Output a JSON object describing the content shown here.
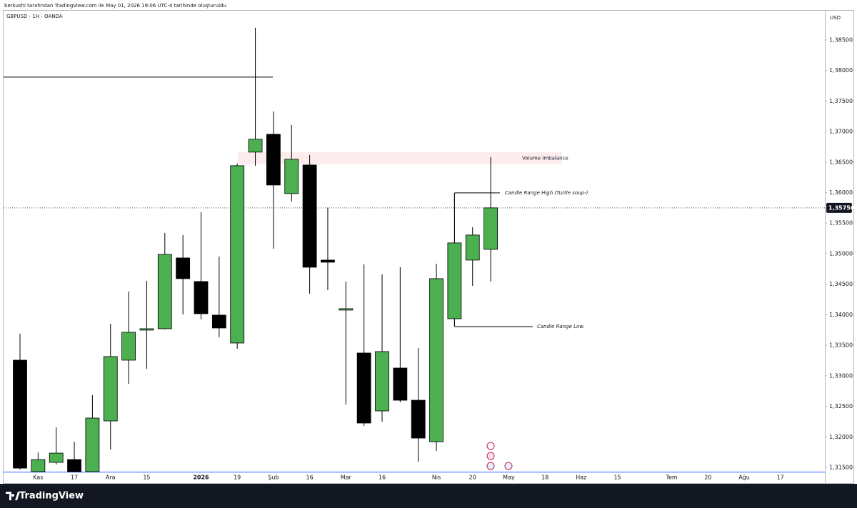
{
  "header": {
    "attribution": "berkushi tarafından TradingView.com ile May 01, 2026 19:06 UTC-4 tarihinde oluşturuldu",
    "symbol": "GBPUSD - 1H - OANDA",
    "currency": "USD"
  },
  "footer": {
    "brand": "TradingView"
  },
  "chart_data": {
    "type": "candlestick",
    "categories": [
      null,
      "Kas",
      null,
      "17",
      null,
      "Ara",
      null,
      "15",
      null,
      null,
      "2026",
      null,
      "19",
      null,
      "Şub",
      null,
      "16",
      null,
      "Mar",
      null,
      "16",
      null,
      null,
      "Nis",
      null,
      "20",
      null,
      "May",
      null,
      "18",
      null,
      "Haz",
      null,
      "15",
      null,
      null,
      "Tem",
      null,
      "20",
      null,
      "Ağu",
      null,
      "17"
    ],
    "open": [
      1.33256,
      1.3143,
      1.31582,
      1.31629,
      1.3143,
      1.32261,
      1.33256,
      1.33748,
      1.33771,
      1.3493,
      1.34544,
      1.33994,
      1.33537,
      1.36663,
      1.36955,
      1.35984,
      1.36452,
      1.34895,
      1.34076,
      1.33373,
      1.32425,
      1.33127,
      1.326,
      1.31921,
      1.33935,
      1.34895,
      1.35071,
      null,
      null,
      null,
      null,
      null,
      null,
      null,
      null,
      null,
      null,
      null,
      null,
      null,
      null,
      null,
      null
    ],
    "high": [
      1.33689,
      1.31746,
      1.32156,
      1.31921,
      1.32682,
      1.33853,
      1.3438,
      1.34556,
      1.3534,
      1.35305,
      1.35679,
      1.34954,
      1.36475,
      1.387,
      1.3733,
      1.37108,
      1.36616,
      1.3575,
      1.34544,
      1.34825,
      1.34661,
      1.34778,
      1.33455,
      1.34836,
      1.35995,
      1.35434,
      1.36581,
      null,
      null,
      null,
      null,
      null,
      null,
      null,
      null,
      null,
      null,
      null,
      null,
      null,
      null,
      null,
      null
    ],
    "low": [
      1.31465,
      1.3143,
      1.31547,
      1.3143,
      1.3143,
      1.31793,
      1.3287,
      1.33116,
      1.3376,
      1.34005,
      1.33923,
      1.33631,
      1.33443,
      1.3644,
      1.35082,
      1.35855,
      1.34345,
      1.34403,
      1.3253,
      1.32179,
      1.32249,
      1.32565,
      1.31594,
      1.31769,
      1.33818,
      1.34474,
      1.34544,
      null,
      null,
      null,
      null,
      null,
      null,
      null,
      null,
      null,
      null,
      null,
      null,
      null,
      null,
      null,
      null
    ],
    "close": [
      1.31488,
      1.31629,
      1.31734,
      1.3143,
      1.32308,
      1.33315,
      1.33713,
      1.33771,
      1.34989,
      1.34591,
      1.34017,
      1.33783,
      1.3644,
      1.36874,
      1.36124,
      1.36546,
      1.34778,
      1.3486,
      1.34099,
      1.32226,
      1.33397,
      1.326,
      1.3198,
      1.34591,
      1.35176,
      1.35305,
      1.3575,
      null,
      null,
      null,
      null,
      null,
      null,
      null,
      null,
      null,
      null,
      null,
      null,
      null,
      null,
      null,
      null
    ],
    "up_color": "#4caf50",
    "down_color": "#000000",
    "ylim": [
      1.3143,
      1.3899
    ],
    "yticks": [
      {
        "value": 1.315,
        "label": "1,31500"
      },
      {
        "value": 1.32,
        "label": "1,32000"
      },
      {
        "value": 1.325,
        "label": "1,32500"
      },
      {
        "value": 1.33,
        "label": "1,33000"
      },
      {
        "value": 1.335,
        "label": "1,33500"
      },
      {
        "value": 1.34,
        "label": "1,34000"
      },
      {
        "value": 1.345,
        "label": "1,34500"
      },
      {
        "value": 1.35,
        "label": "1,35000"
      },
      {
        "value": 1.355,
        "label": "1,35500"
      },
      {
        "value": 1.36,
        "label": "1,36000"
      },
      {
        "value": 1.365,
        "label": "1,36500"
      },
      {
        "value": 1.37,
        "label": "1,37000"
      },
      {
        "value": 1.375,
        "label": "1,37500"
      },
      {
        "value": 1.38,
        "label": "1,38000"
      },
      {
        "value": 1.385,
        "label": "1,38500"
      }
    ],
    "current_price": {
      "value": 1.3575,
      "label": "1,35750"
    },
    "level_line": 1.37892,
    "volume_imbalance": {
      "label": "Volume Imbalance",
      "range": [
        1.36464,
        1.36663
      ]
    },
    "candle_range_high": {
      "label": "Candle Range High.(Turtle soup-)",
      "value": 1.35995
    },
    "candle_range_low": {
      "label": "Candle Range Low.",
      "value": 1.33806
    }
  }
}
